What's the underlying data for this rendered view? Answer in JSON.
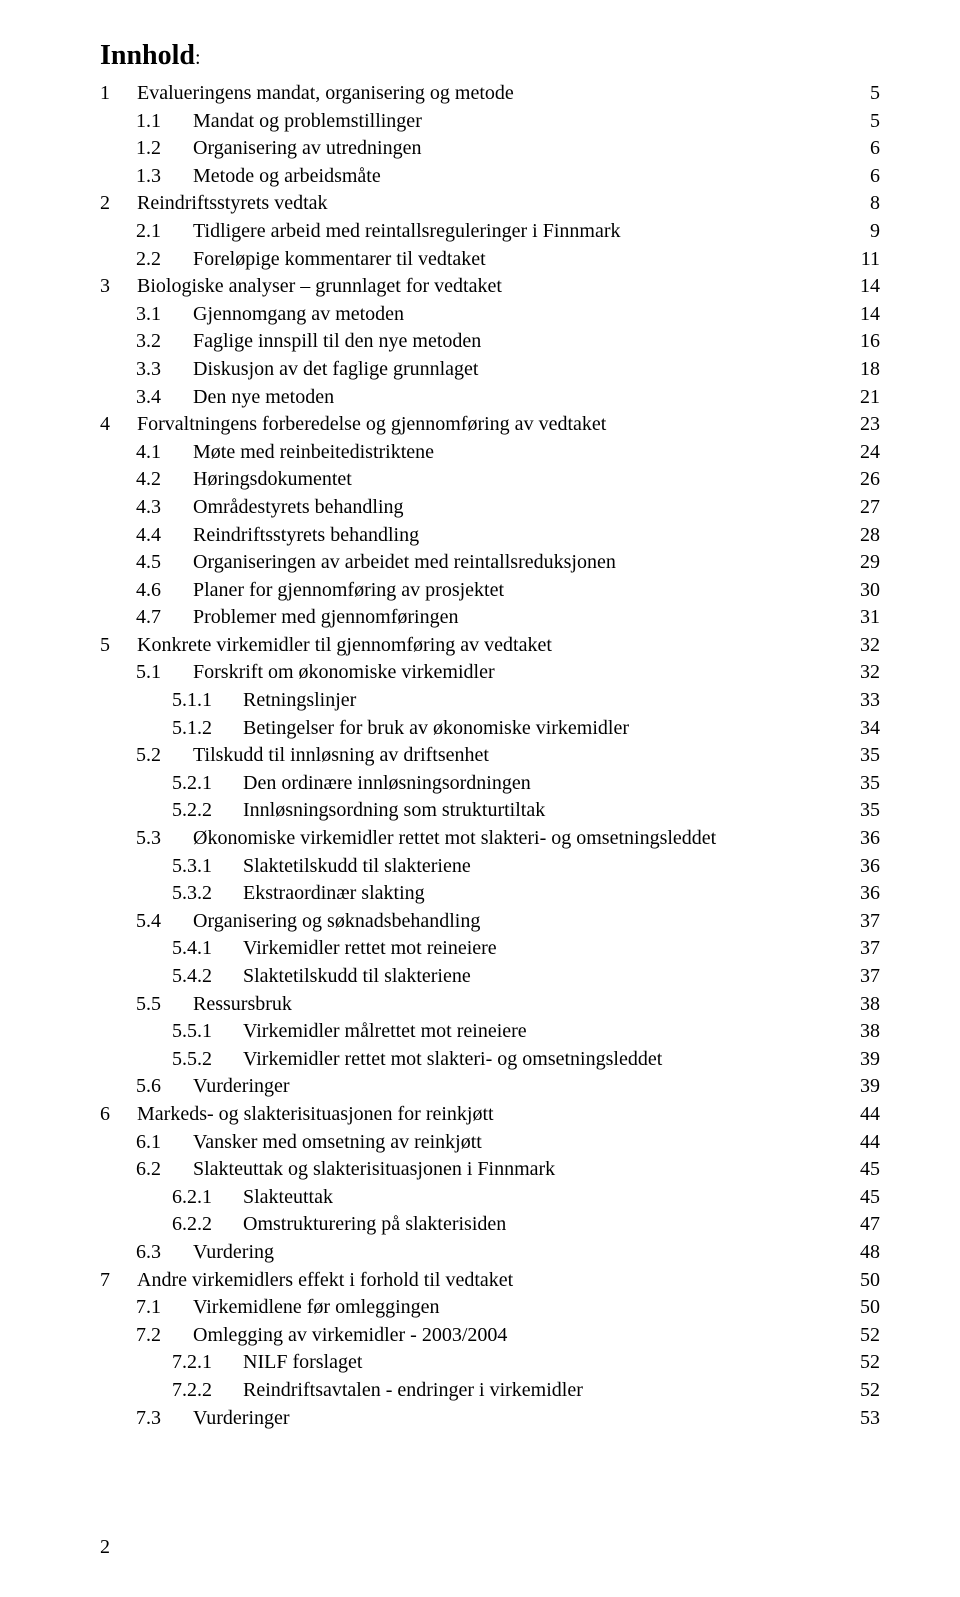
{
  "title": "Innhold",
  "titleSuffix": ":",
  "pageNumber": "2",
  "style": {
    "fontFamily": "Times New Roman",
    "titleFontSize": 28,
    "bodyFontSize": 20,
    "textColor": "#000000",
    "background": "#ffffff",
    "pageWidth": 960,
    "pageHeight": 1597
  },
  "toc": [
    {
      "level": 0,
      "num": "1",
      "text": "Evalueringens mandat, organisering og metode",
      "page": "5"
    },
    {
      "level": 1,
      "num": "1.1",
      "text": "Mandat og problemstillinger",
      "page": "5"
    },
    {
      "level": 1,
      "num": "1.2",
      "text": "Organisering av utredningen",
      "page": "6"
    },
    {
      "level": 1,
      "num": "1.3",
      "text": "Metode og arbeidsmåte",
      "page": "6"
    },
    {
      "level": 0,
      "num": "2",
      "text": "Reindriftsstyrets vedtak",
      "page": "8"
    },
    {
      "level": 1,
      "num": "2.1",
      "text": "Tidligere arbeid med reintallsreguleringer i Finnmark",
      "page": "9"
    },
    {
      "level": 1,
      "num": "2.2",
      "text": "Foreløpige kommentarer til vedtaket",
      "page": "11"
    },
    {
      "level": 0,
      "num": "3",
      "text": "Biologiske analyser – grunnlaget for vedtaket",
      "page": "14"
    },
    {
      "level": 1,
      "num": "3.1",
      "text": "Gjennomgang av metoden",
      "page": "14"
    },
    {
      "level": 1,
      "num": "3.2",
      "text": "Faglige innspill til den nye metoden",
      "page": "16"
    },
    {
      "level": 1,
      "num": "3.3",
      "text": "Diskusjon av det faglige grunnlaget",
      "page": "18"
    },
    {
      "level": 1,
      "num": "3.4",
      "text": "Den nye metoden",
      "page": "21"
    },
    {
      "level": 0,
      "num": "4",
      "text": "Forvaltningens forberedelse og gjennomføring av vedtaket",
      "page": "23"
    },
    {
      "level": 1,
      "num": "4.1",
      "text": "Møte med reinbeitedistriktene",
      "page": "24"
    },
    {
      "level": 1,
      "num": "4.2",
      "text": "Høringsdokumentet",
      "page": "26"
    },
    {
      "level": 1,
      "num": "4.3",
      "text": "Områdestyrets behandling",
      "page": "27"
    },
    {
      "level": 1,
      "num": "4.4",
      "text": "Reindriftsstyrets behandling",
      "page": "28"
    },
    {
      "level": 1,
      "num": "4.5",
      "text": "Organiseringen av arbeidet med reintallsreduksjonen",
      "page": "29"
    },
    {
      "level": 1,
      "num": "4.6",
      "text": "Planer for gjennomføring av prosjektet",
      "page": "30"
    },
    {
      "level": 1,
      "num": "4.7",
      "text": "Problemer med gjennomføringen",
      "page": "31"
    },
    {
      "level": 0,
      "num": "5",
      "text": "Konkrete virkemidler til gjennomføring av vedtaket",
      "page": "32"
    },
    {
      "level": 1,
      "num": "5.1",
      "text": "Forskrift om økonomiske virkemidler",
      "page": "32"
    },
    {
      "level": 2,
      "num": "5.1.1",
      "text": "Retningslinjer",
      "page": "33"
    },
    {
      "level": 2,
      "num": "5.1.2",
      "text": "Betingelser for bruk av økonomiske virkemidler",
      "page": "34"
    },
    {
      "level": 1,
      "num": "5.2",
      "text": "Tilskudd til innløsning av driftsenhet",
      "page": "35"
    },
    {
      "level": 2,
      "num": "5.2.1",
      "text": "Den ordinære innløsningsordningen",
      "page": "35"
    },
    {
      "level": 2,
      "num": "5.2.2",
      "text": "Innløsningsordning som strukturtiltak",
      "page": "35"
    },
    {
      "level": 1,
      "num": "5.3",
      "text": "Økonomiske virkemidler rettet mot slakteri- og omsetningsleddet",
      "page": "36"
    },
    {
      "level": 2,
      "num": "5.3.1",
      "text": "Slaktetilskudd til slakteriene",
      "page": "36"
    },
    {
      "level": 2,
      "num": "5.3.2",
      "text": "Ekstraordinær slakting",
      "page": "36"
    },
    {
      "level": 1,
      "num": "5.4",
      "text": "Organisering og søknadsbehandling",
      "page": "37"
    },
    {
      "level": 2,
      "num": "5.4.1",
      "text": "Virkemidler rettet mot reineiere",
      "page": "37"
    },
    {
      "level": 2,
      "num": "5.4.2",
      "text": "Slaktetilskudd til slakteriene",
      "page": "37"
    },
    {
      "level": 1,
      "num": "5.5",
      "text": "Ressursbruk",
      "page": "38"
    },
    {
      "level": 2,
      "num": "5.5.1",
      "text": "Virkemidler målrettet mot reineiere",
      "page": "38"
    },
    {
      "level": 2,
      "num": "5.5.2",
      "text": "Virkemidler rettet mot slakteri- og omsetningsleddet",
      "page": "39"
    },
    {
      "level": 1,
      "num": "5.6",
      "text": "Vurderinger",
      "page": "39"
    },
    {
      "level": 0,
      "num": "6",
      "text": "Markeds- og slakterisituasjonen for reinkjøtt",
      "page": "44"
    },
    {
      "level": 1,
      "num": "6.1",
      "text": "Vansker med omsetning av reinkjøtt",
      "page": "44"
    },
    {
      "level": 1,
      "num": "6.2",
      "text": "Slakteuttak og slakterisituasjonen i Finnmark",
      "page": "45"
    },
    {
      "level": 2,
      "num": "6.2.1",
      "text": "Slakteuttak",
      "page": "45"
    },
    {
      "level": 2,
      "num": "6.2.2",
      "text": "Omstrukturering på slakterisiden",
      "page": "47"
    },
    {
      "level": 1,
      "num": "6.3",
      "text": "Vurdering",
      "page": "48"
    },
    {
      "level": 0,
      "num": "7",
      "text": "Andre virkemidlers effekt i forhold til vedtaket",
      "page": "50"
    },
    {
      "level": 1,
      "num": "7.1",
      "text": "Virkemidlene før omleggingen",
      "page": "50"
    },
    {
      "level": 1,
      "num": "7.2",
      "text": "Omlegging av virkemidler - 2003/2004",
      "page": "52"
    },
    {
      "level": 2,
      "num": "7.2.1",
      "text": "NILF forslaget",
      "page": "52"
    },
    {
      "level": 2,
      "num": "7.2.2",
      "text": "Reindriftsavtalen - endringer i virkemidler",
      "page": "52"
    },
    {
      "level": 1,
      "num": "7.3",
      "text": "Vurderinger",
      "page": "53"
    }
  ]
}
